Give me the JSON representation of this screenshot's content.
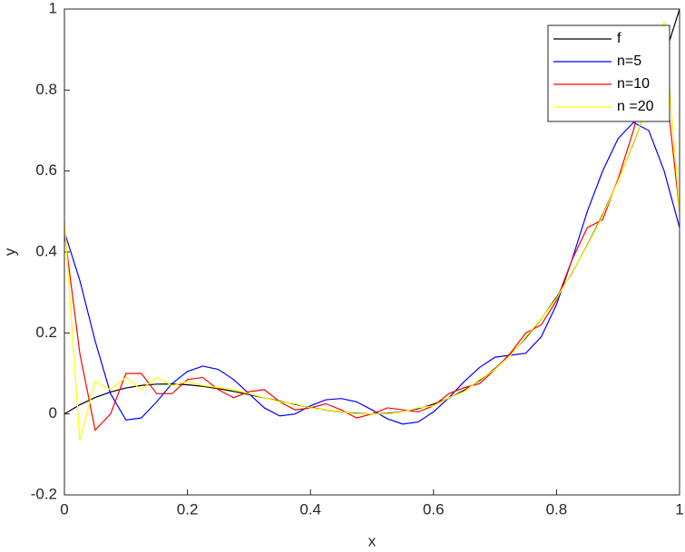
{
  "chart_data": {
    "type": "line",
    "x_label": "x",
    "y_label": "y",
    "x": [
      0,
      0.025,
      0.05,
      0.075,
      0.1,
      0.125,
      0.15,
      0.175,
      0.2,
      0.225,
      0.25,
      0.275,
      0.3,
      0.325,
      0.35,
      0.375,
      0.4,
      0.425,
      0.45,
      0.475,
      0.5,
      0.525,
      0.55,
      0.575,
      0.6,
      0.625,
      0.65,
      0.675,
      0.7,
      0.725,
      0.75,
      0.775,
      0.8,
      0.825,
      0.85,
      0.875,
      0.9,
      0.925,
      0.95,
      0.975,
      1
    ],
    "series": [
      {
        "name": "f",
        "color": "#000000",
        "values": [
          0,
          0.0226,
          0.0405,
          0.0542,
          0.064,
          0.0703,
          0.0735,
          0.0739,
          0.072,
          0.0681,
          0.0625,
          0.0557,
          0.048,
          0.0398,
          0.0315,
          0.0234,
          0.016,
          0.0096,
          0.0045,
          0.0012,
          0,
          0.0013,
          0.0055,
          0.0129,
          0.024,
          0.0391,
          0.0585,
          0.0827,
          0.112,
          0.1468,
          0.1875,
          0.2344,
          0.288,
          0.3486,
          0.4165,
          0.4922,
          0.576,
          0.6683,
          0.7695,
          0.8799,
          1
        ]
      },
      {
        "name": "n=5",
        "color": "#0000ff",
        "values": [
          0.45,
          0.33,
          0.18,
          0.05,
          -0.015,
          -0.01,
          0.03,
          0.075,
          0.105,
          0.118,
          0.11,
          0.085,
          0.05,
          0.015,
          -0.005,
          0,
          0.02,
          0.035,
          0.038,
          0.03,
          0.01,
          -0.012,
          -0.025,
          -0.02,
          0.005,
          0.04,
          0.08,
          0.115,
          0.14,
          0.145,
          0.15,
          0.19,
          0.27,
          0.38,
          0.5,
          0.6,
          0.68,
          0.72,
          0.7,
          0.6,
          0.46
        ]
      },
      {
        "name": "n=10",
        "color": "#ff0000",
        "values": [
          0.45,
          0.15,
          -0.04,
          0,
          0.1,
          0.1,
          0.05,
          0.05,
          0.085,
          0.09,
          0.06,
          0.04,
          0.055,
          0.06,
          0.03,
          0.01,
          0.015,
          0.025,
          0.01,
          -0.01,
          0,
          0.015,
          0.01,
          0.005,
          0.02,
          0.05,
          0.065,
          0.075,
          0.11,
          0.15,
          0.2,
          0.22,
          0.28,
          0.38,
          0.46,
          0.48,
          0.58,
          0.7,
          0.85,
          0.85,
          0.5
        ]
      },
      {
        "name": "n =20",
        "color": "#ffff00",
        "values": [
          0.48,
          -0.065,
          0.08,
          0.06,
          0.09,
          0.06,
          0.09,
          0.07,
          0.08,
          0.07,
          0.065,
          0.06,
          0.05,
          0.04,
          0.03,
          0.025,
          0.015,
          0.01,
          0.005,
          0,
          0,
          0,
          0.005,
          0.015,
          0.02,
          0.04,
          0.055,
          0.085,
          0.11,
          0.145,
          0.19,
          0.235,
          0.285,
          0.35,
          0.415,
          0.49,
          0.575,
          0.67,
          0.77,
          0.97,
          0.5
        ]
      }
    ],
    "xlim": [
      0,
      1
    ],
    "xticks": [
      0,
      0.2,
      0.4,
      0.6,
      0.8,
      1
    ],
    "ylim": [
      -0.2,
      1
    ],
    "yticks": [
      -0.2,
      0,
      0.2,
      0.4,
      0.6,
      0.8,
      1
    ],
    "grid": false,
    "legend": "northeast"
  }
}
